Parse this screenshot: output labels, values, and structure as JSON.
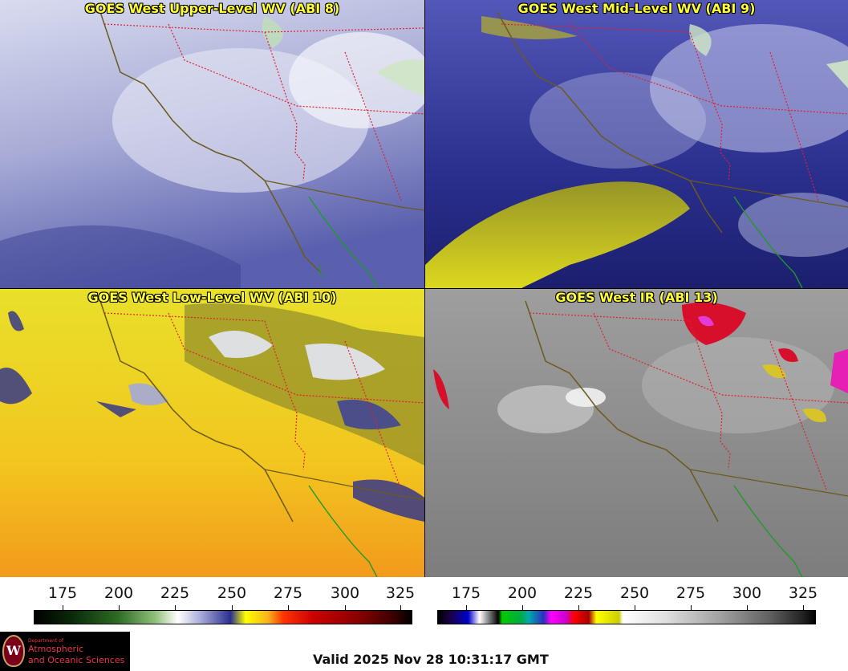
{
  "panels": {
    "upper": {
      "title": "GOES West Upper-Level WV (ABI 8)"
    },
    "mid": {
      "title": "GOES West Mid-Level WV (ABI 9)"
    },
    "low": {
      "title": "GOES West Low-Level WV (ABI 10)"
    },
    "ir": {
      "title": "GOES West IR (ABI 13)"
    }
  },
  "colorbars": {
    "wv": {
      "ticks": [
        "175",
        "200",
        "225",
        "250",
        "275",
        "300",
        "325"
      ]
    },
    "ir": {
      "ticks": [
        "175",
        "200",
        "225",
        "250",
        "275",
        "300",
        "325"
      ]
    }
  },
  "logo": {
    "dept": "Department of",
    "line1": "Atmospheric",
    "line2": "and Oceanic Sciences",
    "seal_letter": "W"
  },
  "valid_time": "Valid 2025 Nov 28 10:31:17 GMT",
  "colors": {
    "title_text": "#ffff33",
    "coast": "#6b5a1a",
    "mexico_coast": "#1f9a2a",
    "state_borders": "#e02030"
  }
}
